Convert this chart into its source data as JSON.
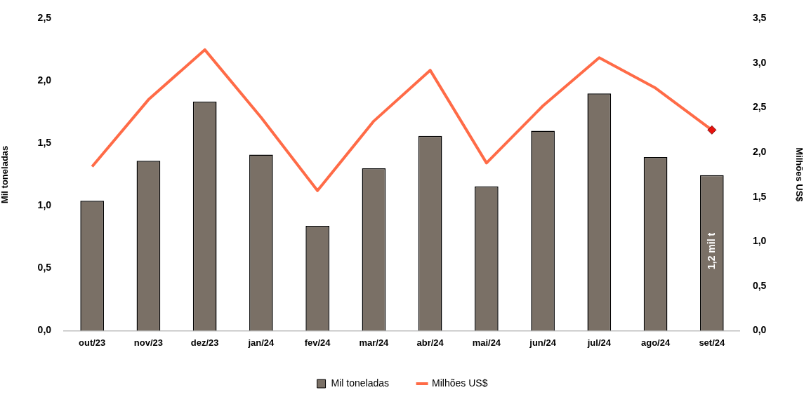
{
  "chart_data": {
    "type": "bar",
    "categories": [
      "out/23",
      "nov/23",
      "dez/23",
      "jan/24",
      "fev/24",
      "mar/24",
      "abr/24",
      "mai/24",
      "jun/24",
      "jul/24",
      "ago/24",
      "set/24"
    ],
    "series": [
      {
        "name": "Mil toneladas",
        "color": "#7a7066",
        "values": [
          1.04,
          1.36,
          1.835,
          1.41,
          0.84,
          1.3,
          1.56,
          1.155,
          1.6,
          1.9,
          1.39,
          1.245
        ]
      },
      {
        "name": "Milhões US$",
        "type": "line",
        "axis": "y2",
        "color": "#ff6b47",
        "marker": "none",
        "values": [
          1.84,
          2.59,
          3.15,
          2.39,
          1.57,
          2.35,
          2.92,
          1.88,
          2.52,
          3.06,
          2.72,
          2.25
        ]
      },
      {
        "type": "scatter",
        "axis": "y2",
        "color": "#e8120c",
        "marker": "diamond",
        "x": [
          "set/24"
        ],
        "values": [
          2.25
        ]
      }
    ],
    "ylabel": "Mil toneladas",
    "y2label": "Milhões US$",
    "ylim": [
      0,
      2.5
    ],
    "yticks": [
      {
        "value": 0,
        "label": "0,0"
      },
      {
        "value": 0.5,
        "label": "0,5"
      },
      {
        "value": 1,
        "label": "1,0"
      },
      {
        "value": 1.5,
        "label": "1,5"
      },
      {
        "value": 2,
        "label": "2,0"
      },
      {
        "value": 2.5,
        "label": "2,5"
      }
    ],
    "y2lim": [
      0,
      3.5
    ],
    "y2ticks": [
      {
        "value": 0,
        "label": "0,0"
      },
      {
        "value": 0.5,
        "label": "0,5"
      },
      {
        "value": 1,
        "label": "1,0"
      },
      {
        "value": 1.5,
        "label": "1,5"
      },
      {
        "value": 2,
        "label": "2,0"
      },
      {
        "value": 2.5,
        "label": "2,5"
      },
      {
        "value": 3,
        "label": "3,0"
      },
      {
        "value": 3.5,
        "label": "3,5"
      }
    ],
    "annotations": [
      "1,2 mil t"
    ],
    "grid": false,
    "legend": "bottom"
  }
}
